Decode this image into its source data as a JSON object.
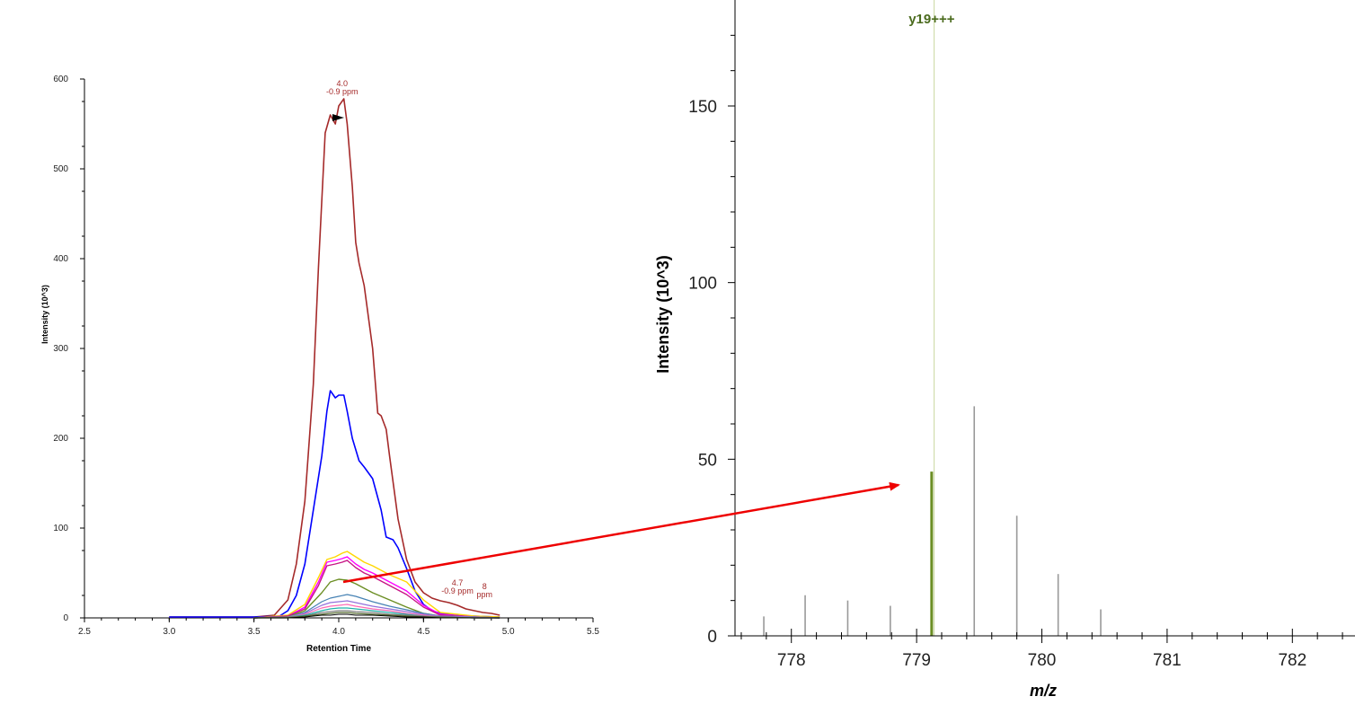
{
  "chart_data": [
    {
      "type": "line",
      "xlabel": "Retention Time",
      "ylabel": "Intensity (10^3)",
      "xlim": [
        2.5,
        5.5
      ],
      "ylim": [
        0,
        600
      ],
      "xticks": [
        "2.5",
        "3.0",
        "3.5",
        "4.0",
        "4.5",
        "5.0",
        "5.5"
      ],
      "yticks": [
        "0",
        "100",
        "200",
        "300",
        "400",
        "500",
        "600"
      ],
      "annotations": [
        {
          "lines": [
            "4.0",
            "-0.9 ppm"
          ],
          "x": 4.02,
          "y": 578,
          "color": "#a52a2a"
        },
        {
          "lines": [
            "4.7",
            "-0.9 ppm"
          ],
          "x": 4.7,
          "y": 22,
          "color": "#a52a2a"
        },
        {
          "lines": [
            "8",
            "ppm"
          ],
          "x": 4.86,
          "y": 18,
          "color": "#a52a2a"
        }
      ],
      "series": [
        {
          "color": "#a52a2a",
          "width": 1.6,
          "x": [
            3.0,
            3.5,
            3.62,
            3.7,
            3.75,
            3.8,
            3.85,
            3.88,
            3.92,
            3.95,
            3.98,
            4.0,
            4.03,
            4.05,
            4.08,
            4.1,
            4.12,
            4.15,
            4.2,
            4.23,
            4.25,
            4.28,
            4.3,
            4.35,
            4.4,
            4.45,
            4.5,
            4.55,
            4.6,
            4.65,
            4.7,
            4.75,
            4.8,
            4.85,
            4.9,
            4.95
          ],
          "y": [
            1,
            1,
            3,
            20,
            60,
            130,
            260,
            390,
            540,
            560,
            550,
            570,
            578,
            550,
            480,
            418,
            395,
            370,
            300,
            228,
            225,
            210,
            180,
            110,
            65,
            40,
            28,
            22,
            19,
            17,
            14,
            10,
            8,
            6,
            5,
            3
          ]
        },
        {
          "color": "#0000ff",
          "width": 1.6,
          "x": [
            3.0,
            3.5,
            3.65,
            3.7,
            3.75,
            3.8,
            3.85,
            3.9,
            3.93,
            3.95,
            3.98,
            4.0,
            4.03,
            4.05,
            4.08,
            4.12,
            4.15,
            4.2,
            4.25,
            4.28,
            4.32,
            4.35,
            4.4,
            4.45,
            4.5,
            4.55,
            4.6,
            4.7,
            4.8,
            4.95
          ],
          "y": [
            1,
            1,
            2,
            8,
            25,
            60,
            120,
            180,
            230,
            253,
            245,
            248,
            248,
            230,
            200,
            175,
            168,
            155,
            120,
            90,
            87,
            78,
            55,
            30,
            15,
            8,
            5,
            3,
            2,
            1
          ]
        },
        {
          "color": "#ffd700",
          "width": 1.4,
          "x": [
            3.5,
            3.7,
            3.8,
            3.88,
            3.93,
            3.98,
            4.02,
            4.05,
            4.1,
            4.15,
            4.2,
            4.3,
            4.4,
            4.5,
            4.6,
            4.8,
            4.95
          ],
          "y": [
            0,
            3,
            15,
            45,
            65,
            68,
            72,
            74,
            68,
            62,
            58,
            48,
            40,
            20,
            6,
            2,
            1
          ]
        },
        {
          "color": "#ff00ff",
          "width": 1.4,
          "x": [
            3.5,
            3.7,
            3.8,
            3.88,
            3.93,
            3.98,
            4.02,
            4.05,
            4.1,
            4.15,
            4.2,
            4.3,
            4.4,
            4.5,
            4.6,
            4.8,
            4.95
          ],
          "y": [
            0,
            2,
            12,
            40,
            62,
            64,
            66,
            68,
            60,
            54,
            50,
            40,
            30,
            14,
            4,
            1,
            0
          ]
        },
        {
          "color": "#c71585",
          "width": 1.4,
          "x": [
            3.5,
            3.7,
            3.8,
            3.88,
            3.93,
            3.98,
            4.02,
            4.05,
            4.1,
            4.15,
            4.2,
            4.3,
            4.4,
            4.5,
            4.6,
            4.8,
            4.95
          ],
          "y": [
            0,
            2,
            10,
            36,
            58,
            60,
            62,
            64,
            56,
            50,
            46,
            36,
            26,
            12,
            3,
            1,
            0
          ]
        },
        {
          "color": "#6b8e23",
          "width": 1.4,
          "x": [
            3.5,
            3.7,
            3.8,
            3.9,
            3.95,
            4.0,
            4.05,
            4.1,
            4.15,
            4.2,
            4.3,
            4.4,
            4.5,
            4.6,
            4.8,
            4.95
          ],
          "y": [
            0,
            1,
            8,
            28,
            40,
            43,
            42,
            38,
            33,
            28,
            20,
            12,
            5,
            2,
            1,
            0
          ]
        },
        {
          "color": "#4682b4",
          "width": 1.2,
          "x": [
            3.5,
            3.7,
            3.8,
            3.9,
            3.95,
            4.0,
            4.05,
            4.1,
            4.2,
            4.3,
            4.4,
            4.5,
            4.6,
            4.8,
            4.95
          ],
          "y": [
            0,
            1,
            6,
            18,
            22,
            24,
            26,
            24,
            18,
            13,
            9,
            5,
            2,
            1,
            0
          ]
        },
        {
          "color": "#9370db",
          "width": 1.2,
          "x": [
            3.5,
            3.7,
            3.8,
            3.9,
            3.95,
            4.0,
            4.05,
            4.1,
            4.2,
            4.3,
            4.4,
            4.5,
            4.6,
            4.8,
            4.95
          ],
          "y": [
            0,
            1,
            5,
            14,
            17,
            18,
            19,
            17,
            13,
            10,
            7,
            4,
            2,
            1,
            0
          ]
        },
        {
          "color": "#ff69b4",
          "width": 1.2,
          "x": [
            3.5,
            3.7,
            3.8,
            3.9,
            3.95,
            4.0,
            4.05,
            4.1,
            4.2,
            4.3,
            4.4,
            4.5,
            4.6,
            4.8,
            4.95
          ],
          "y": [
            0,
            1,
            4,
            11,
            13,
            14,
            15,
            13,
            10,
            8,
            5,
            3,
            1,
            0,
            0
          ]
        },
        {
          "color": "#20b2aa",
          "width": 1.2,
          "x": [
            3.5,
            3.7,
            3.8,
            3.9,
            3.95,
            4.0,
            4.05,
            4.1,
            4.2,
            4.3,
            4.4,
            4.5,
            4.6,
            4.8,
            4.95
          ],
          "y": [
            0,
            1,
            3,
            8,
            10,
            11,
            11,
            10,
            8,
            6,
            4,
            2,
            1,
            0,
            0
          ]
        },
        {
          "color": "#808080",
          "width": 1.2,
          "x": [
            3.5,
            3.7,
            3.8,
            3.9,
            3.95,
            4.0,
            4.05,
            4.1,
            4.2,
            4.3,
            4.4,
            4.5,
            4.6,
            4.8,
            4.95
          ],
          "y": [
            0,
            1,
            2,
            6,
            7,
            8,
            8,
            7,
            6,
            4,
            3,
            2,
            1,
            0,
            0
          ]
        },
        {
          "color": "#556b2f",
          "width": 1.2,
          "x": [
            3.5,
            3.7,
            3.8,
            3.9,
            3.95,
            4.0,
            4.05,
            4.1,
            4.2,
            4.3,
            4.4,
            4.5,
            4.6,
            4.8,
            4.95
          ],
          "y": [
            0,
            0,
            2,
            4,
            5,
            6,
            6,
            5,
            4,
            3,
            2,
            1,
            1,
            0,
            0
          ]
        },
        {
          "color": "#000000",
          "width": 1.0,
          "x": [
            3.5,
            3.7,
            3.8,
            3.9,
            3.95,
            4.0,
            4.05,
            4.1,
            4.2,
            4.3,
            4.4,
            4.5,
            4.6,
            4.8,
            4.95
          ],
          "y": [
            0,
            0,
            1,
            3,
            3,
            4,
            4,
            3,
            3,
            2,
            1,
            1,
            0,
            0,
            0
          ]
        }
      ]
    },
    {
      "type": "bar",
      "xlabel": "m/z",
      "ylabel": "Intensity (10^3)",
      "xlim": [
        777.55,
        782.5
      ],
      "ylim": [
        0,
        180
      ],
      "xticks": [
        "778",
        "779",
        "780",
        "781",
        "782"
      ],
      "yticks": [
        "0",
        "50",
        "100",
        "150"
      ],
      "peaks": [
        {
          "mz": 777.78,
          "intensity": 5.5,
          "color": "#999999"
        },
        {
          "mz": 778.11,
          "intensity": 11.5,
          "color": "#999999"
        },
        {
          "mz": 778.45,
          "intensity": 10,
          "color": "#999999"
        },
        {
          "mz": 778.79,
          "intensity": 8.5,
          "color": "#999999"
        },
        {
          "mz": 779.12,
          "intensity": 46.5,
          "color": "#6b8e23",
          "label": "y19+++"
        },
        {
          "mz": 779.46,
          "intensity": 65,
          "color": "#999999"
        },
        {
          "mz": 779.8,
          "intensity": 34,
          "color": "#999999"
        },
        {
          "mz": 780.13,
          "intensity": 17.5,
          "color": "#999999"
        },
        {
          "mz": 780.47,
          "intensity": 7.5,
          "color": "#999999"
        }
      ],
      "marker_line": {
        "mz": 779.14,
        "color": "#c8d7a0"
      }
    }
  ],
  "arrow": {
    "color": "#ee0000"
  }
}
